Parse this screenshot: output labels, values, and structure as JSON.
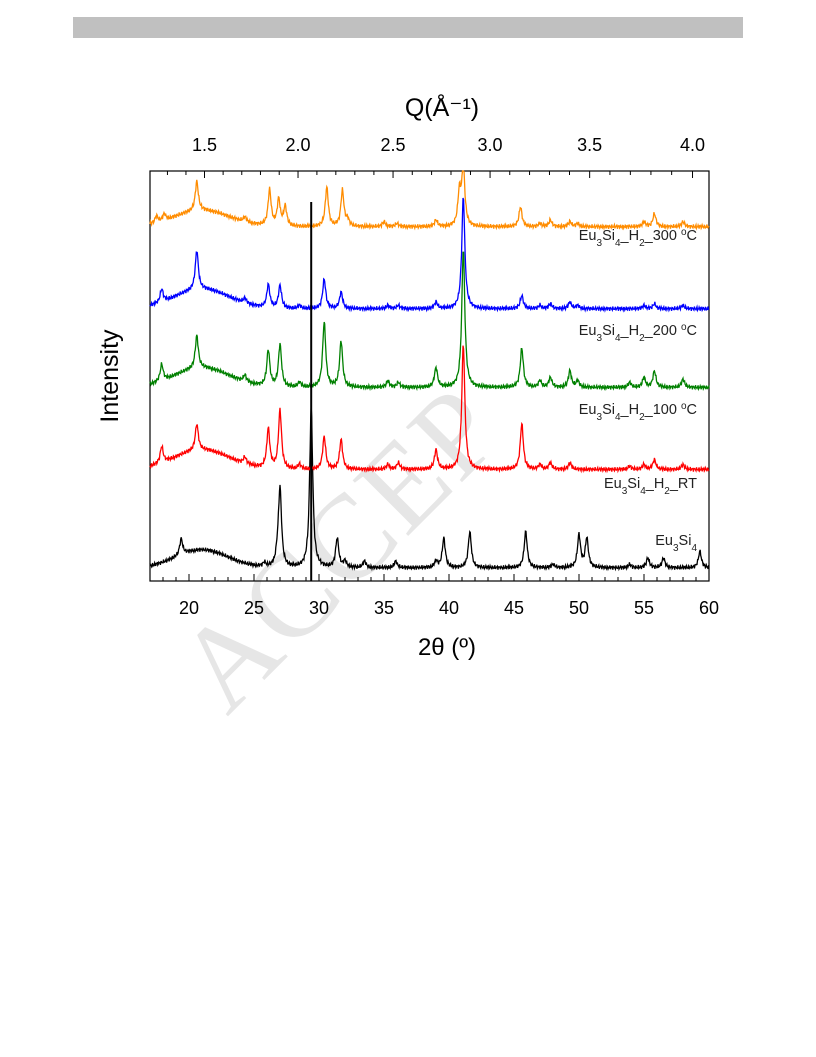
{
  "watermark": "ACCEP",
  "chart_data": {
    "type": "line",
    "xlabel": "2θ (º)",
    "ylabel": "Intensity",
    "top_axis_label": "Q(Å⁻¹)",
    "xlim": [
      17,
      60
    ],
    "x_ticks": [
      20,
      25,
      30,
      35,
      40,
      45,
      50,
      55,
      60
    ],
    "top_ticks": [
      "1.5",
      "2.0",
      "2.5",
      "3.0",
      "3.5",
      "4.0"
    ],
    "marker_line_x": 29.4,
    "series": [
      {
        "name": "Eu3Si4",
        "label_parts": [
          [
            "Eu",
            ""
          ],
          [
            "3",
            "sub"
          ],
          [
            "Si",
            ""
          ],
          [
            "4",
            "sub"
          ]
        ],
        "color": "#000000",
        "baseline": 0.04,
        "hump": [
          {
            "center": 21,
            "height": 0.055,
            "width": 2.8
          }
        ],
        "peaks": [
          [
            19.4,
            0.05
          ],
          [
            25.8,
            0.012
          ],
          [
            26.8,
            0.03
          ],
          [
            27.0,
            0.24
          ],
          [
            29.4,
            0.49
          ],
          [
            31.4,
            0.09
          ],
          [
            32.0,
            0.02
          ],
          [
            33.5,
            0.02
          ],
          [
            35.9,
            0.02
          ],
          [
            39.0,
            0.02
          ],
          [
            39.6,
            0.09
          ],
          [
            41.6,
            0.11
          ],
          [
            45.9,
            0.11
          ],
          [
            48.0,
            0.01
          ],
          [
            50.0,
            0.1
          ],
          [
            50.6,
            0.09
          ],
          [
            53.9,
            0.01
          ],
          [
            55.3,
            0.03
          ],
          [
            56.5,
            0.03
          ],
          [
            59.3,
            0.05
          ]
        ]
      },
      {
        "name": "Eu3Si4_H2_RT",
        "label_parts": [
          [
            "Eu",
            ""
          ],
          [
            "3",
            "sub"
          ],
          [
            "Si",
            ""
          ],
          [
            "4",
            "sub"
          ],
          [
            "_H",
            ""
          ],
          [
            "2",
            "sub"
          ],
          [
            "_RT",
            ""
          ]
        ],
        "color": "#ff0000",
        "baseline": 0.34,
        "hump": [
          {
            "center": 21,
            "height": 0.06,
            "width": 3
          }
        ],
        "peaks": [
          [
            17.9,
            0.05
          ],
          [
            20.6,
            0.08
          ],
          [
            24.3,
            0.02
          ],
          [
            26.1,
            0.12
          ],
          [
            27.0,
            0.18
          ],
          [
            28.5,
            0.015
          ],
          [
            30.4,
            0.1
          ],
          [
            31.7,
            0.09
          ],
          [
            35.3,
            0.015
          ],
          [
            36.1,
            0.02
          ],
          [
            39.0,
            0.06
          ],
          [
            41.1,
            0.38
          ],
          [
            45.6,
            0.14
          ],
          [
            47.0,
            0.015
          ],
          [
            47.8,
            0.02
          ],
          [
            49.3,
            0.02
          ],
          [
            53.9,
            0.01
          ],
          [
            55.0,
            0.015
          ],
          [
            55.8,
            0.03
          ],
          [
            58.0,
            0.015
          ]
        ]
      },
      {
        "name": "Eu3Si4_H2_100 oC",
        "label_parts": [
          [
            "Eu",
            ""
          ],
          [
            "3",
            "sub"
          ],
          [
            "Si",
            ""
          ],
          [
            "4",
            "sub"
          ],
          [
            "_H",
            ""
          ],
          [
            "2",
            "sub"
          ],
          [
            "_100 ",
            ""
          ],
          [
            "o",
            "sup"
          ],
          [
            "C",
            ""
          ]
        ],
        "color": "#008000",
        "baseline": 0.59,
        "hump": [
          {
            "center": 21,
            "height": 0.06,
            "width": 3
          }
        ],
        "peaks": [
          [
            17.9,
            0.05
          ],
          [
            20.6,
            0.1
          ],
          [
            24.3,
            0.02
          ],
          [
            26.1,
            0.11
          ],
          [
            27.0,
            0.13
          ],
          [
            28.5,
            0.015
          ],
          [
            30.4,
            0.2
          ],
          [
            31.7,
            0.14
          ],
          [
            35.3,
            0.02
          ],
          [
            36.1,
            0.015
          ],
          [
            39.0,
            0.06
          ],
          [
            41.1,
            0.42
          ],
          [
            45.6,
            0.12
          ],
          [
            47.0,
            0.02
          ],
          [
            47.8,
            0.03
          ],
          [
            49.3,
            0.05
          ],
          [
            49.9,
            0.02
          ],
          [
            53.9,
            0.015
          ],
          [
            55.0,
            0.03
          ],
          [
            55.8,
            0.05
          ],
          [
            58.0,
            0.025
          ]
        ]
      },
      {
        "name": "Eu3Si4_H2_200 oC",
        "label_parts": [
          [
            "Eu",
            ""
          ],
          [
            "3",
            "sub"
          ],
          [
            "Si",
            ""
          ],
          [
            "4",
            "sub"
          ],
          [
            "_H",
            ""
          ],
          [
            "2",
            "sub"
          ],
          [
            "_200 ",
            ""
          ],
          [
            "o",
            "sup"
          ],
          [
            "C",
            ""
          ]
        ],
        "color": "#0000ff",
        "baseline": 0.83,
        "hump": [
          {
            "center": 21,
            "height": 0.06,
            "width": 3
          }
        ],
        "peaks": [
          [
            17.9,
            0.04
          ],
          [
            20.6,
            0.12
          ],
          [
            24.3,
            0.015
          ],
          [
            26.1,
            0.07
          ],
          [
            27.0,
            0.07
          ],
          [
            28.5,
            0.01
          ],
          [
            30.4,
            0.09
          ],
          [
            31.7,
            0.05
          ],
          [
            35.3,
            0.01
          ],
          [
            36.1,
            0.01
          ],
          [
            39.0,
            0.02
          ],
          [
            41.1,
            0.34
          ],
          [
            45.6,
            0.04
          ],
          [
            47.0,
            0.01
          ],
          [
            47.8,
            0.015
          ],
          [
            49.3,
            0.02
          ],
          [
            49.9,
            0.01
          ],
          [
            55.0,
            0.01
          ],
          [
            55.8,
            0.015
          ],
          [
            58.0,
            0.01
          ]
        ]
      },
      {
        "name": "Eu3Si4_H2_300 oC",
        "label_parts": [
          [
            "Eu",
            ""
          ],
          [
            "3",
            "sub"
          ],
          [
            "Si",
            ""
          ],
          [
            "4",
            "sub"
          ],
          [
            "_H",
            ""
          ],
          [
            "2",
            "sub"
          ],
          [
            "_300 ",
            ""
          ],
          [
            "o",
            "sup"
          ],
          [
            "C",
            ""
          ]
        ],
        "color": "#ff8c00",
        "baseline": 1.08,
        "hump": [
          {
            "center": 21,
            "height": 0.05,
            "width": 3
          }
        ],
        "peaks": [
          [
            17.5,
            0.02
          ],
          [
            18.1,
            0.02
          ],
          [
            20.6,
            0.09
          ],
          [
            24.3,
            0.015
          ],
          [
            26.2,
            0.11
          ],
          [
            26.9,
            0.08
          ],
          [
            27.4,
            0.06
          ],
          [
            30.6,
            0.12
          ],
          [
            31.8,
            0.11
          ],
          [
            32.2,
            0.02
          ],
          [
            35.0,
            0.015
          ],
          [
            36.0,
            0.01
          ],
          [
            39.0,
            0.02
          ],
          [
            40.8,
            0.1
          ],
          [
            41.1,
            0.18
          ],
          [
            45.5,
            0.06
          ],
          [
            47.0,
            0.01
          ],
          [
            47.8,
            0.02
          ],
          [
            49.3,
            0.015
          ],
          [
            49.9,
            0.01
          ],
          [
            55.0,
            0.015
          ],
          [
            55.8,
            0.04
          ],
          [
            58.0,
            0.015
          ]
        ]
      }
    ]
  }
}
